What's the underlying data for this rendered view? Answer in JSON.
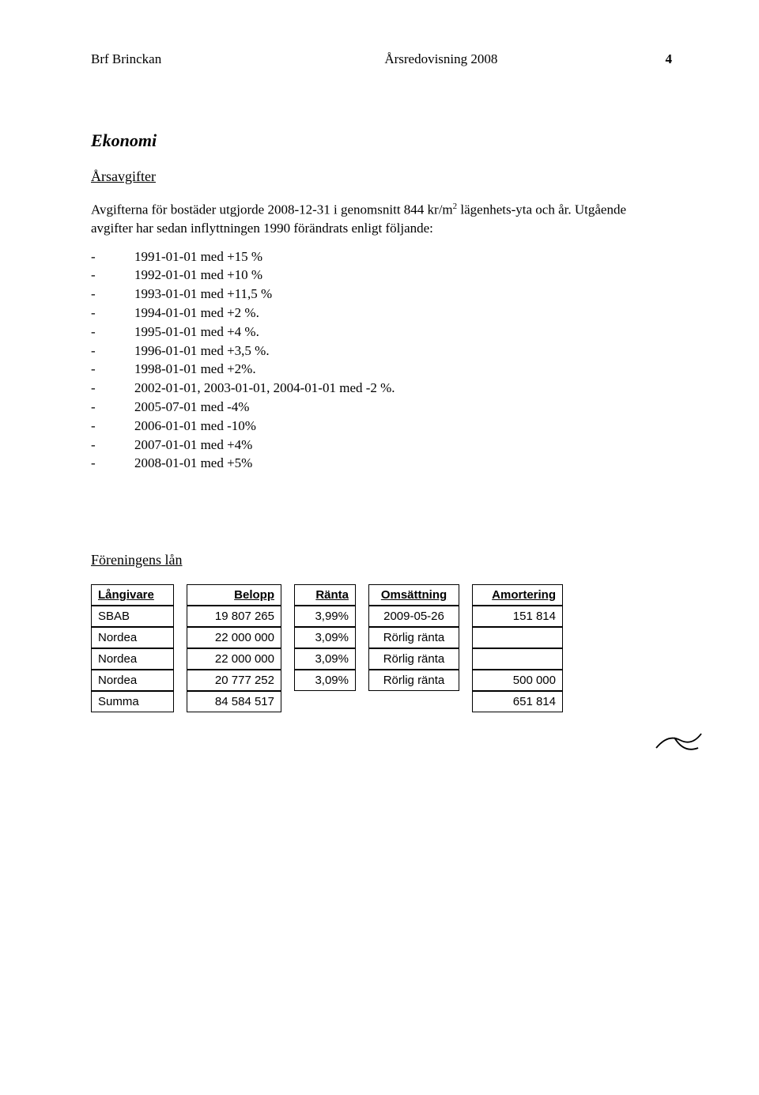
{
  "header": {
    "left": "Brf Brinckan",
    "center": "Årsredovisning 2008",
    "page": "4"
  },
  "section_title": "Ekonomi",
  "sub1": "Årsavgifter",
  "para1a": "Avgifterna för bostäder utgjorde 2008-12-31 i genomsnitt 844 kr/m",
  "para1b": " lägenhets-yta och år. Utgående avgifter har sedan inflyttningen 1990 förändrats enligt följande:",
  "fee_changes": [
    "1991-01-01 med +15 %",
    "1992-01-01 med +10 %",
    "1993-01-01 med +11,5 %",
    "1994-01-01 med +2 %.",
    "1995-01-01 med +4 %.",
    "1996-01-01 med +3,5 %.",
    "1998-01-01 med +2%.",
    "2002-01-01, 2003-01-01, 2004-01-01 med -2 %.",
    "2005-07-01 med -4%",
    "2006-01-01 med -10%",
    "2007-01-01 med +4%",
    "2008-01-01 med +5%"
  ],
  "sub2": "Föreningens lån",
  "table": {
    "headers": {
      "langivare": "Långivare",
      "belopp": "Belopp",
      "ranta": "Ränta",
      "omsattning": "Omsättning",
      "amortering": "Amortering"
    },
    "rows": [
      {
        "langivare": "SBAB",
        "belopp": "19 807 265",
        "ranta": "3,99%",
        "omsattning": "2009-05-26",
        "amortering": "151 814"
      },
      {
        "langivare": "Nordea",
        "belopp": "22 000 000",
        "ranta": "3,09%",
        "omsattning": "Rörlig ränta",
        "amortering": ""
      },
      {
        "langivare": "Nordea",
        "belopp": "22 000 000",
        "ranta": "3,09%",
        "omsattning": "Rörlig ränta",
        "amortering": ""
      },
      {
        "langivare": "Nordea",
        "belopp": "20 777 252",
        "ranta": "3,09%",
        "omsattning": "Rörlig ränta",
        "amortering": "500 000"
      }
    ],
    "summary": {
      "langivare": "Summa",
      "belopp": "84 584 517",
      "amortering": "651 814"
    }
  }
}
